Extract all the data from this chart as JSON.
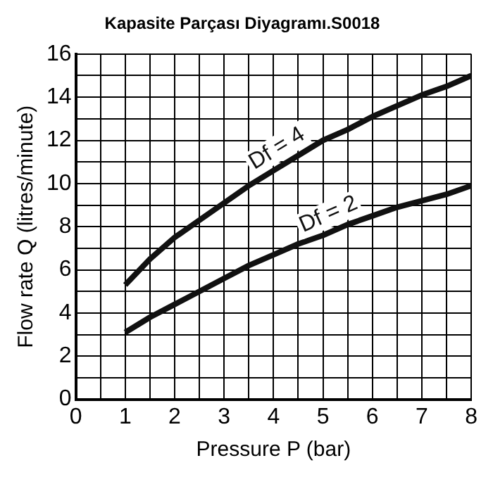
{
  "chart_data": {
    "type": "line",
    "title": "Kapasite Parçası Diyagramı.S0018",
    "xlabel": "Pressure P (bar)",
    "ylabel": "Flow rate Q (litres/minute)",
    "x": [
      1,
      1.5,
      2,
      2.5,
      3,
      3.5,
      4,
      4.5,
      5,
      5.5,
      6,
      6.5,
      7,
      7.5,
      8
    ],
    "series": [
      {
        "name": "Df = 4",
        "color": "#111111",
        "values": [
          5.3,
          6.5,
          7.5,
          8.3,
          9.1,
          9.9,
          10.6,
          11.3,
          12,
          12.5,
          13.1,
          13.6,
          14.1,
          14.5,
          15
        ]
      },
      {
        "name": "Df = 2",
        "color": "#111111",
        "values": [
          3.1,
          3.8,
          4.4,
          5,
          5.6,
          6.2,
          6.7,
          7.2,
          7.6,
          8.1,
          8.5,
          8.9,
          9.2,
          9.5,
          9.9
        ]
      }
    ],
    "xlim": [
      0,
      8
    ],
    "ylim": [
      0,
      16
    ],
    "xticks": [
      0,
      {
        "value": 0.5,
        "label": null
      },
      1,
      {
        "value": 1.5,
        "label": null
      },
      2,
      {
        "value": 2.5,
        "label": null
      },
      3,
      {
        "value": 3.5,
        "label": null
      },
      4,
      {
        "value": 4.5,
        "label": null
      },
      5,
      {
        "value": 5.5,
        "label": null
      },
      6,
      {
        "value": 6.5,
        "label": null
      },
      7,
      {
        "value": 7.5,
        "label": null
      },
      8
    ],
    "yticks": [
      0,
      {
        "value": 1,
        "label": null
      },
      2,
      {
        "value": 3,
        "label": null
      },
      4,
      {
        "value": 5,
        "label": null
      },
      6,
      {
        "value": 7,
        "label": null
      },
      8,
      {
        "value": 9,
        "label": null
      },
      10,
      {
        "value": 11,
        "label": null
      },
      12,
      {
        "value": 13,
        "label": null
      },
      14,
      {
        "value": 15,
        "label": null
      },
      16
    ],
    "grid": true,
    "legend": false,
    "marker": "none",
    "line_style": "solid"
  }
}
